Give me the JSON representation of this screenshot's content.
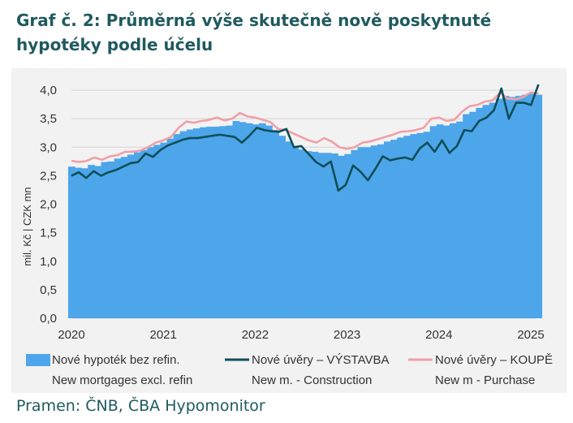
{
  "title": "Graf č. 2: Průměrná výše skutečně nově poskytnuté hypotéky podle účelu",
  "source": "Pramen: ČNB, ČBA Hypomonitor",
  "colors": {
    "bars": "#4da6ea",
    "construction": "#0e4e58",
    "purchase": "#f0a0a8",
    "title": "#1f5a5f"
  },
  "chart_data": {
    "type": "bar",
    "ylabel": "mil. Kč  |  CZK mn",
    "ylim": [
      0,
      4.3
    ],
    "yticks": [
      "0,0",
      "0,5",
      "1,0",
      "1,5",
      "2,0",
      "2,5",
      "3,0",
      "3,5",
      "4,0"
    ],
    "yticks_values": [
      0,
      0.5,
      1.0,
      1.5,
      2.0,
      2.5,
      3.0,
      3.5,
      4.0
    ],
    "xticks": [
      "2020",
      "2021",
      "2022",
      "2023",
      "2024",
      "2025"
    ],
    "x_start": "2020-01",
    "x_end": "2025-02",
    "grid": true,
    "legend_position": "bottom",
    "series": [
      {
        "name": "Nové hypoték bez refin.",
        "name_en": "New mortgages excl. refin",
        "kind": "bar",
        "values": [
          2.66,
          2.64,
          2.63,
          2.69,
          2.67,
          2.74,
          2.75,
          2.8,
          2.83,
          2.87,
          2.91,
          2.95,
          3.0,
          3.04,
          3.08,
          3.15,
          3.23,
          3.28,
          3.31,
          3.33,
          3.35,
          3.36,
          3.36,
          3.37,
          3.38,
          3.46,
          3.44,
          3.42,
          3.4,
          3.42,
          3.38,
          3.3,
          3.2,
          3.1,
          3.01,
          2.96,
          2.93,
          2.92,
          2.9,
          2.9,
          2.89,
          2.85,
          2.88,
          2.95,
          3.0,
          3.0,
          3.03,
          3.05,
          3.1,
          3.13,
          3.17,
          3.2,
          3.23,
          3.25,
          3.27,
          3.37,
          3.4,
          3.38,
          3.42,
          3.45,
          3.58,
          3.62,
          3.69,
          3.74,
          3.78,
          3.85,
          3.9,
          3.88,
          3.9,
          3.92,
          3.94,
          3.92
        ]
      },
      {
        "name": "Nové úvěry – VÝSTAVBA",
        "name_en": "New m. - Construction",
        "kind": "line",
        "values": [
          2.5,
          2.56,
          2.46,
          2.58,
          2.5,
          2.56,
          2.6,
          2.66,
          2.72,
          2.74,
          2.89,
          2.83,
          2.95,
          3.03,
          3.08,
          3.13,
          3.16,
          3.16,
          3.18,
          3.2,
          3.22,
          3.2,
          3.18,
          3.08,
          3.2,
          3.34,
          3.3,
          3.28,
          3.27,
          3.32,
          3.0,
          3.02,
          2.88,
          2.74,
          2.66,
          2.75,
          2.24,
          2.34,
          2.68,
          2.57,
          2.42,
          2.62,
          2.84,
          2.77,
          2.8,
          2.82,
          2.78,
          2.98,
          3.08,
          2.92,
          3.12,
          2.9,
          3.02,
          3.3,
          3.28,
          3.46,
          3.52,
          3.65,
          4.03,
          3.5,
          3.78,
          3.78,
          3.74,
          4.1
        ]
      },
      {
        "name": "Nové úvěry – KOUPĚ",
        "name_en": "New m - Purchase",
        "kind": "line",
        "values": [
          2.76,
          2.74,
          2.76,
          2.82,
          2.78,
          2.84,
          2.86,
          2.92,
          2.92,
          2.94,
          3.0,
          3.08,
          3.12,
          3.18,
          3.34,
          3.45,
          3.43,
          3.46,
          3.48,
          3.52,
          3.47,
          3.5,
          3.6,
          3.54,
          3.52,
          3.48,
          3.44,
          3.32,
          3.3,
          3.24,
          3.18,
          3.12,
          3.08,
          3.16,
          3.1,
          3.0,
          2.97,
          3.0,
          3.08,
          3.1,
          3.14,
          3.18,
          3.22,
          3.27,
          3.28,
          3.3,
          3.34,
          3.5,
          3.52,
          3.46,
          3.48,
          3.62,
          3.72,
          3.74,
          3.8,
          3.82,
          3.96,
          3.85,
          3.84,
          3.88,
          3.96,
          3.94
        ]
      }
    ]
  }
}
